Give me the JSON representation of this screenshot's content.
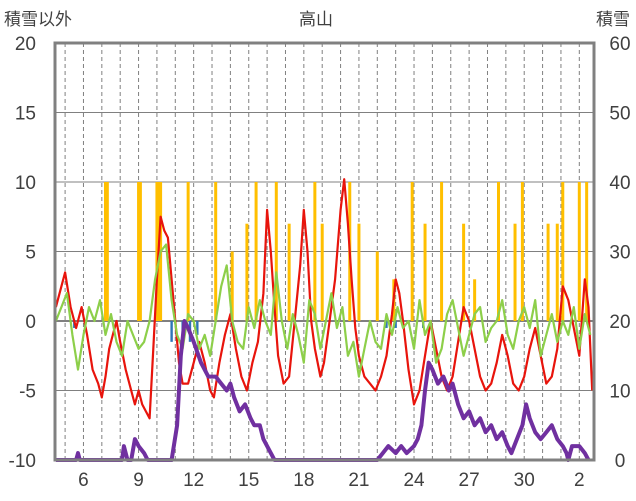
{
  "chart_data": {
    "type": "line",
    "title": "高山",
    "ylabel_left": "積雪以外",
    "ylabel_right": "積雪",
    "ylim_left": [
      -10,
      20
    ],
    "ylim_right": [
      0,
      60
    ],
    "yticks_left": [
      "20",
      "15",
      "10",
      "5",
      "0",
      "-5",
      "-10"
    ],
    "yticks_right": [
      "60",
      "50",
      "40",
      "30",
      "20",
      "10",
      "0"
    ],
    "xticks": [
      "6",
      "9",
      "12",
      "15",
      "18",
      "21",
      "24",
      "27",
      "30",
      "2"
    ],
    "grid": true,
    "legend": "none",
    "colors": {
      "red_series": "#e8140c",
      "green_series": "#8dcf4a",
      "orange_series": "#ffbf00",
      "blue_series": "#2e75b6",
      "purple_series": "#7030a0",
      "axis": "#808080",
      "grid": "#808080"
    },
    "orange_bars": [
      {
        "x": 7.2,
        "v": 10
      },
      {
        "x": 7.3,
        "v": 10
      },
      {
        "x": 9.0,
        "v": 10
      },
      {
        "x": 9.1,
        "v": 10
      },
      {
        "x": 10.0,
        "v": 10
      },
      {
        "x": 10.1,
        "v": 10
      },
      {
        "x": 10.2,
        "v": 10
      },
      {
        "x": 11.7,
        "v": 10
      },
      {
        "x": 13.2,
        "v": 10
      },
      {
        "x": 14.1,
        "v": 5
      },
      {
        "x": 14.9,
        "v": 7
      },
      {
        "x": 15.4,
        "v": 10
      },
      {
        "x": 16.5,
        "v": 10
      },
      {
        "x": 17.2,
        "v": 7
      },
      {
        "x": 18.6,
        "v": 10
      },
      {
        "x": 19.0,
        "v": 7
      },
      {
        "x": 20.5,
        "v": 10
      },
      {
        "x": 21.0,
        "v": 7
      },
      {
        "x": 22.0,
        "v": 5
      },
      {
        "x": 22.9,
        "v": 3
      },
      {
        "x": 23.9,
        "v": 10
      },
      {
        "x": 24.6,
        "v": 7
      },
      {
        "x": 25.5,
        "v": 10
      },
      {
        "x": 26.7,
        "v": 7
      },
      {
        "x": 27.3,
        "v": 3
      },
      {
        "x": 28.6,
        "v": 10
      },
      {
        "x": 29.5,
        "v": 7
      },
      {
        "x": 29.9,
        "v": 10
      },
      {
        "x": 31.3,
        "v": 7
      },
      {
        "x": 31.8,
        "v": 7
      },
      {
        "x": 32.1,
        "v": 10
      },
      {
        "x": 33.0,
        "v": 10
      },
      {
        "x": 33.4,
        "v": 10
      }
    ],
    "blue_bars": [
      {
        "x": 5.5,
        "v": -0.5
      },
      {
        "x": 10.8,
        "v": -1.5
      },
      {
        "x": 11.4,
        "v": -1.5
      },
      {
        "x": 11.8,
        "v": -1.5
      },
      {
        "x": 12.2,
        "v": -1.0
      },
      {
        "x": 22.5,
        "v": -0.5
      },
      {
        "x": 23.0,
        "v": -0.5
      },
      {
        "x": 24.5,
        "v": -0.5
      }
    ],
    "red_series": [
      [
        4.5,
        1.0
      ],
      [
        4.7,
        2.0
      ],
      [
        5.0,
        3.5
      ],
      [
        5.3,
        1.0
      ],
      [
        5.6,
        -0.5
      ],
      [
        5.9,
        1.0
      ],
      [
        6.2,
        -1.0
      ],
      [
        6.5,
        -3.5
      ],
      [
        6.8,
        -4.5
      ],
      [
        7.0,
        -5.5
      ],
      [
        7.2,
        -4.0
      ],
      [
        7.4,
        -2.0
      ],
      [
        7.6,
        -1.0
      ],
      [
        7.8,
        0.0
      ],
      [
        8.0,
        -1.5
      ],
      [
        8.3,
        -3.5
      ],
      [
        8.6,
        -5.0
      ],
      [
        8.8,
        -6.0
      ],
      [
        9.0,
        -5.0
      ],
      [
        9.2,
        -6.0
      ],
      [
        9.4,
        -6.5
      ],
      [
        9.6,
        -7.0
      ],
      [
        9.8,
        -2.0
      ],
      [
        10.0,
        3.0
      ],
      [
        10.2,
        7.5
      ],
      [
        10.4,
        6.5
      ],
      [
        10.6,
        6.0
      ],
      [
        10.8,
        3.0
      ],
      [
        11.0,
        0.0
      ],
      [
        11.2,
        -3.0
      ],
      [
        11.4,
        -4.5
      ],
      [
        11.7,
        -4.5
      ],
      [
        12.0,
        -3.0
      ],
      [
        12.3,
        -1.5
      ],
      [
        12.6,
        -3.0
      ],
      [
        12.9,
        -5.0
      ],
      [
        13.1,
        -5.5
      ],
      [
        13.4,
        -3.0
      ],
      [
        13.7,
        -1.0
      ],
      [
        14.0,
        0.5
      ],
      [
        14.3,
        -2.0
      ],
      [
        14.6,
        -4.0
      ],
      [
        14.9,
        -5.0
      ],
      [
        15.2,
        -3.0
      ],
      [
        15.5,
        -1.5
      ],
      [
        15.8,
        2.0
      ],
      [
        16.0,
        8.0
      ],
      [
        16.2,
        5.0
      ],
      [
        16.4,
        1.0
      ],
      [
        16.6,
        -2.5
      ],
      [
        16.9,
        -4.5
      ],
      [
        17.2,
        -4.0
      ],
      [
        17.5,
        0.0
      ],
      [
        17.8,
        4.0
      ],
      [
        18.0,
        8.0
      ],
      [
        18.2,
        5.0
      ],
      [
        18.4,
        0.0
      ],
      [
        18.6,
        -2.0
      ],
      [
        18.9,
        -4.0
      ],
      [
        19.1,
        -3.0
      ],
      [
        19.4,
        0.0
      ],
      [
        19.7,
        3.0
      ],
      [
        20.0,
        8.0
      ],
      [
        20.2,
        10.2
      ],
      [
        20.4,
        7.0
      ],
      [
        20.6,
        3.0
      ],
      [
        20.8,
        -0.5
      ],
      [
        21.0,
        -2.5
      ],
      [
        21.3,
        -4.0
      ],
      [
        21.6,
        -4.5
      ],
      [
        21.9,
        -5.0
      ],
      [
        22.2,
        -4.0
      ],
      [
        22.5,
        -2.5
      ],
      [
        22.8,
        0.5
      ],
      [
        23.0,
        3.0
      ],
      [
        23.2,
        2.0
      ],
      [
        23.4,
        0.0
      ],
      [
        23.7,
        -3.5
      ],
      [
        24.0,
        -6.0
      ],
      [
        24.3,
        -5.0
      ],
      [
        24.6,
        -2.5
      ],
      [
        24.9,
        0.0
      ],
      [
        25.2,
        -2.0
      ],
      [
        25.5,
        -4.0
      ],
      [
        25.8,
        -5.0
      ],
      [
        26.1,
        -4.0
      ],
      [
        26.4,
        -1.5
      ],
      [
        26.7,
        1.0
      ],
      [
        27.0,
        0.0
      ],
      [
        27.3,
        -2.0
      ],
      [
        27.6,
        -4.0
      ],
      [
        27.9,
        -5.0
      ],
      [
        28.2,
        -4.5
      ],
      [
        28.5,
        -3.0
      ],
      [
        28.8,
        -1.0
      ],
      [
        29.1,
        -2.5
      ],
      [
        29.4,
        -4.5
      ],
      [
        29.7,
        -5.0
      ],
      [
        30.0,
        -4.0
      ],
      [
        30.3,
        -2.0
      ],
      [
        30.6,
        -0.5
      ],
      [
        30.9,
        -2.5
      ],
      [
        31.2,
        -4.5
      ],
      [
        31.5,
        -4.0
      ],
      [
        31.8,
        -2.0
      ],
      [
        32.1,
        2.5
      ],
      [
        32.4,
        1.5
      ],
      [
        32.7,
        -0.5
      ],
      [
        33.0,
        -2.5
      ],
      [
        33.3,
        3.0
      ],
      [
        33.5,
        1.0
      ],
      [
        33.7,
        -5.0
      ]
    ],
    "green_series": [
      [
        4.5,
        0.0
      ],
      [
        4.8,
        1.0
      ],
      [
        5.1,
        2.0
      ],
      [
        5.4,
        -1.0
      ],
      [
        5.7,
        -3.5
      ],
      [
        6.0,
        -1.0
      ],
      [
        6.3,
        1.0
      ],
      [
        6.6,
        0.0
      ],
      [
        6.9,
        1.5
      ],
      [
        7.2,
        -1.0
      ],
      [
        7.5,
        0.5
      ],
      [
        7.8,
        -1.5
      ],
      [
        8.1,
        -2.5
      ],
      [
        8.4,
        0.0
      ],
      [
        8.7,
        -1.0
      ],
      [
        9.0,
        -2.0
      ],
      [
        9.3,
        -1.5
      ],
      [
        9.6,
        0.0
      ],
      [
        9.9,
        3.0
      ],
      [
        10.2,
        5.0
      ],
      [
        10.5,
        5.5
      ],
      [
        10.8,
        1.5
      ],
      [
        11.1,
        -1.0
      ],
      [
        11.4,
        -2.0
      ],
      [
        11.7,
        0.5
      ],
      [
        12.0,
        0.0
      ],
      [
        12.3,
        -2.0
      ],
      [
        12.6,
        -1.0
      ],
      [
        12.9,
        -2.5
      ],
      [
        13.2,
        0.0
      ],
      [
        13.5,
        2.5
      ],
      [
        13.8,
        4.0
      ],
      [
        14.1,
        0.0
      ],
      [
        14.4,
        -1.5
      ],
      [
        14.7,
        -2.0
      ],
      [
        15.0,
        1.0
      ],
      [
        15.3,
        -0.5
      ],
      [
        15.6,
        1.5
      ],
      [
        15.9,
        0.0
      ],
      [
        16.2,
        -1.0
      ],
      [
        16.5,
        3.5
      ],
      [
        16.8,
        0.0
      ],
      [
        17.1,
        -2.0
      ],
      [
        17.4,
        0.5
      ],
      [
        17.7,
        -1.0
      ],
      [
        18.0,
        -3.0
      ],
      [
        18.3,
        1.5
      ],
      [
        18.6,
        0.5
      ],
      [
        18.9,
        -2.0
      ],
      [
        19.2,
        0.0
      ],
      [
        19.5,
        2.0
      ],
      [
        19.8,
        -0.5
      ],
      [
        20.1,
        1.0
      ],
      [
        20.4,
        -2.5
      ],
      [
        20.7,
        -1.5
      ],
      [
        21.0,
        -4.0
      ],
      [
        21.3,
        -2.0
      ],
      [
        21.6,
        0.0
      ],
      [
        21.9,
        -1.5
      ],
      [
        22.2,
        -2.0
      ],
      [
        22.5,
        0.5
      ],
      [
        22.8,
        -1.0
      ],
      [
        23.1,
        1.0
      ],
      [
        23.4,
        -0.5
      ],
      [
        23.7,
        0.0
      ],
      [
        24.0,
        -2.0
      ],
      [
        24.3,
        1.5
      ],
      [
        24.6,
        -1.0
      ],
      [
        24.9,
        0.0
      ],
      [
        25.2,
        -3.0
      ],
      [
        25.5,
        -2.0
      ],
      [
        25.8,
        0.5
      ],
      [
        26.1,
        1.5
      ],
      [
        26.4,
        -0.5
      ],
      [
        26.7,
        -2.5
      ],
      [
        27.0,
        -1.0
      ],
      [
        27.3,
        0.5
      ],
      [
        27.6,
        1.0
      ],
      [
        27.9,
        -1.5
      ],
      [
        28.2,
        -0.5
      ],
      [
        28.5,
        0.0
      ],
      [
        28.8,
        1.5
      ],
      [
        29.1,
        -1.0
      ],
      [
        29.4,
        -2.0
      ],
      [
        29.7,
        0.0
      ],
      [
        30.0,
        1.0
      ],
      [
        30.3,
        -0.5
      ],
      [
        30.6,
        1.5
      ],
      [
        30.9,
        -2.5
      ],
      [
        31.2,
        -1.0
      ],
      [
        31.5,
        0.5
      ],
      [
        31.8,
        -1.5
      ],
      [
        32.1,
        0.0
      ],
      [
        32.4,
        -1.0
      ],
      [
        32.7,
        1.0
      ],
      [
        33.0,
        -2.0
      ],
      [
        33.3,
        0.5
      ],
      [
        33.6,
        -1.0
      ]
    ],
    "purple_series": [
      [
        4.5,
        0.0
      ],
      [
        5.6,
        0.0
      ],
      [
        5.7,
        1.0
      ],
      [
        5.8,
        0.0
      ],
      [
        7.5,
        0.0
      ],
      [
        8.1,
        0.0
      ],
      [
        8.2,
        2.0
      ],
      [
        8.4,
        0.0
      ],
      [
        8.6,
        0.0
      ],
      [
        8.8,
        3.0
      ],
      [
        9.0,
        2.0
      ],
      [
        9.3,
        1.0
      ],
      [
        9.5,
        0.0
      ],
      [
        10.8,
        0.0
      ],
      [
        11.1,
        5.0
      ],
      [
        11.3,
        15.0
      ],
      [
        11.5,
        20.0
      ],
      [
        11.7,
        19.0
      ],
      [
        12.0,
        17.0
      ],
      [
        12.4,
        14.0
      ],
      [
        12.8,
        12.0
      ],
      [
        13.2,
        12.0
      ],
      [
        13.5,
        11.0
      ],
      [
        13.8,
        10.0
      ],
      [
        14.0,
        11.0
      ],
      [
        14.2,
        9.0
      ],
      [
        14.5,
        7.0
      ],
      [
        14.8,
        8.0
      ],
      [
        15.1,
        6.0
      ],
      [
        15.3,
        5.0
      ],
      [
        15.6,
        5.0
      ],
      [
        15.8,
        3.0
      ],
      [
        16.0,
        2.0
      ],
      [
        16.4,
        0.0
      ],
      [
        22.0,
        0.0
      ],
      [
        22.3,
        1.0
      ],
      [
        22.6,
        2.0
      ],
      [
        23.0,
        1.0
      ],
      [
        23.3,
        2.0
      ],
      [
        23.6,
        1.0
      ],
      [
        24.0,
        2.0
      ],
      [
        24.2,
        3.0
      ],
      [
        24.4,
        5.0
      ],
      [
        24.6,
        10.0
      ],
      [
        24.8,
        14.0
      ],
      [
        25.0,
        13.0
      ],
      [
        25.3,
        11.0
      ],
      [
        25.6,
        12.0
      ],
      [
        25.9,
        10.0
      ],
      [
        26.1,
        11.0
      ],
      [
        26.4,
        8.0
      ],
      [
        26.7,
        6.0
      ],
      [
        27.0,
        7.0
      ],
      [
        27.3,
        5.0
      ],
      [
        27.6,
        6.0
      ],
      [
        27.9,
        4.0
      ],
      [
        28.2,
        5.0
      ],
      [
        28.5,
        3.0
      ],
      [
        28.8,
        4.0
      ],
      [
        29.1,
        2.0
      ],
      [
        29.3,
        1.0
      ],
      [
        29.6,
        3.0
      ],
      [
        29.9,
        5.0
      ],
      [
        30.1,
        8.0
      ],
      [
        30.3,
        6.0
      ],
      [
        30.6,
        4.0
      ],
      [
        30.9,
        3.0
      ],
      [
        31.2,
        4.0
      ],
      [
        31.5,
        5.0
      ],
      [
        31.8,
        3.0
      ],
      [
        32.1,
        2.0
      ],
      [
        32.3,
        1.0
      ],
      [
        32.4,
        0.0
      ],
      [
        32.6,
        2.0
      ],
      [
        33.0,
        2.0
      ],
      [
        33.3,
        1.0
      ],
      [
        33.5,
        0.0
      ]
    ]
  }
}
